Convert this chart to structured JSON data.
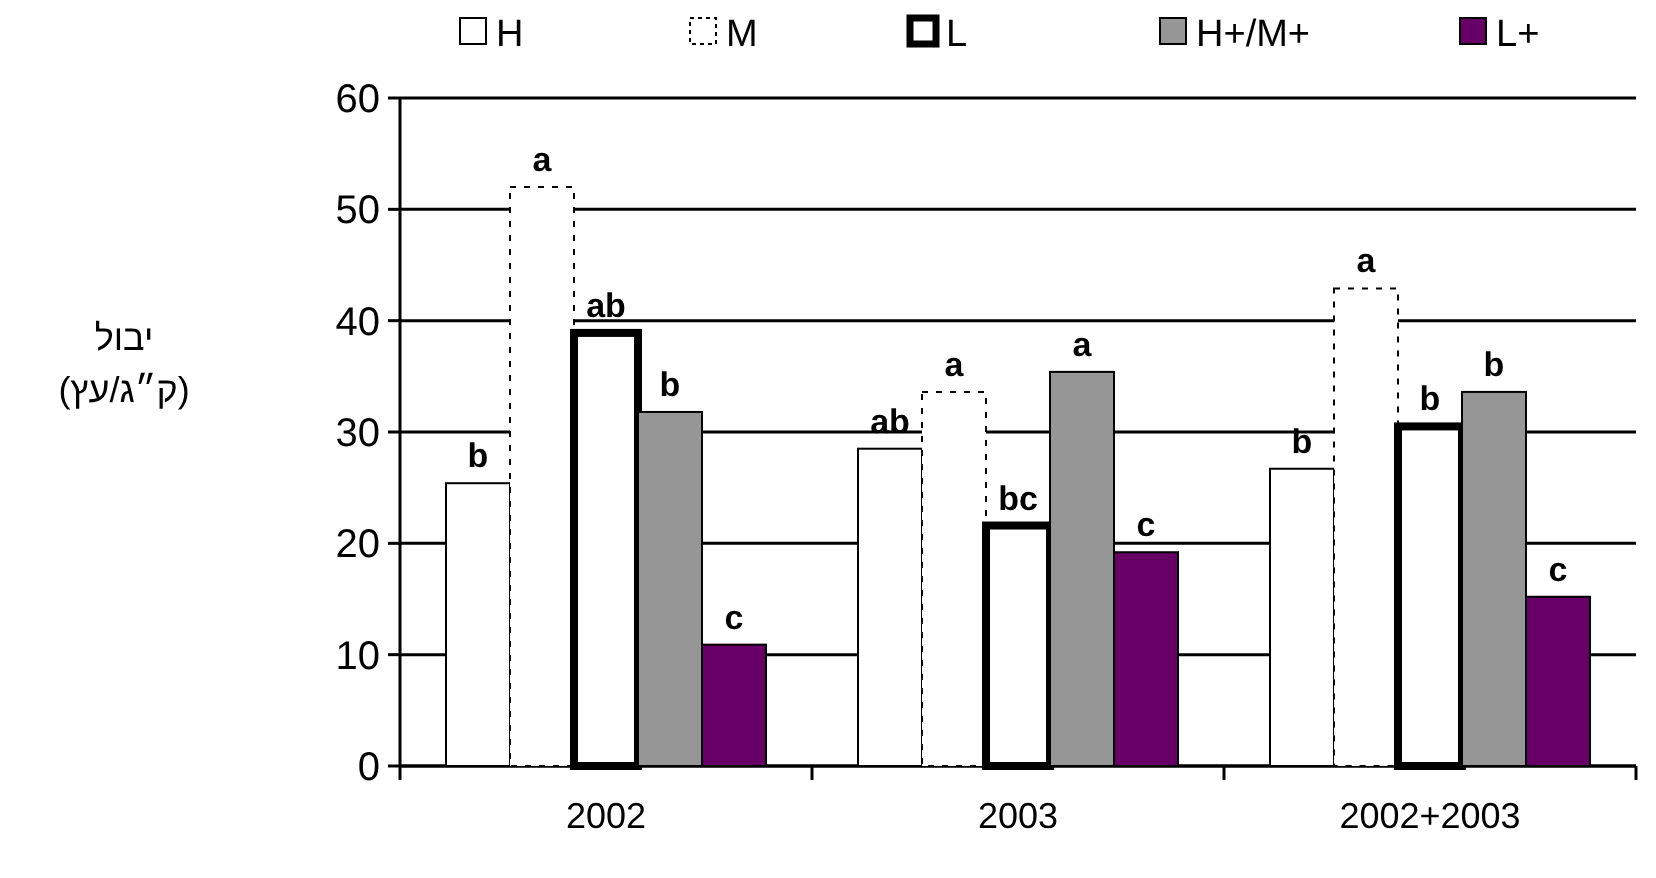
{
  "chart_data": {
    "type": "bar",
    "ylabel": "יבול\n(ק״ג/עץ)",
    "categories": [
      "2002",
      "2003",
      "2002+2003"
    ],
    "series": [
      {
        "name": "H",
        "color": "#ffffff",
        "line_style": "solid",
        "values": [
          25.4,
          28.5,
          26.7
        ],
        "value_labels": [
          "b",
          "ab",
          "b"
        ]
      },
      {
        "name": "M",
        "color": "#ffffff",
        "line_style": "dotted",
        "values": [
          52.0,
          33.6,
          42.9
        ],
        "value_labels": [
          "a",
          "a",
          "a"
        ]
      },
      {
        "name": "L",
        "color": "#ffffff",
        "line_style": "solid",
        "values": [
          38.9,
          21.6,
          30.5
        ],
        "value_labels": [
          "ab",
          "bc",
          "b"
        ]
      },
      {
        "name": "H+/M+",
        "color": "#969696",
        "line_style": "solid",
        "values": [
          31.8,
          35.4,
          33.6
        ],
        "value_labels": [
          "b",
          "a",
          "b"
        ]
      },
      {
        "name": "L+",
        "color": "#660066",
        "line_style": "solid",
        "values": [
          10.9,
          19.2,
          15.2
        ],
        "value_labels": [
          "c",
          "c",
          "c"
        ]
      }
    ],
    "ylim": [
      0,
      60
    ],
    "yticks": [
      0,
      10,
      20,
      30,
      40,
      50,
      60
    ],
    "grid": "y",
    "legend": "top"
  }
}
